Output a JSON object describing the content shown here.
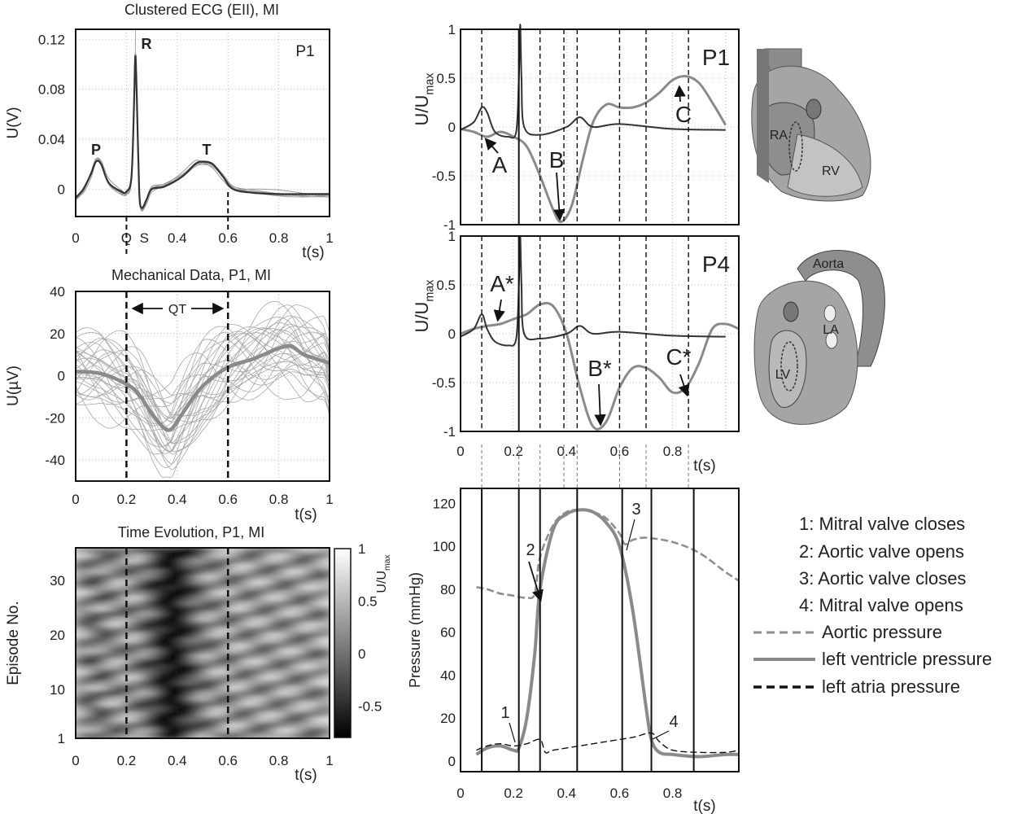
{
  "chart_data": [
    {
      "id": "ecg",
      "type": "line",
      "title": "Clustered ECG (EII), MI",
      "xlabel": "t(s)",
      "ylabel": "U(V)",
      "xlim": [
        0,
        1
      ],
      "ylim": [
        -0.022,
        0.128
      ],
      "xticks": [
        "0",
        "Q",
        "S",
        "0.4",
        "0.6",
        "0.8",
        "1"
      ],
      "yticks": [
        "0",
        "0.04",
        "0.08",
        "0.12"
      ],
      "panel_label": "P1",
      "annotations": [
        "P",
        "R",
        "T"
      ],
      "series": [
        {
          "name": "ECG",
          "x": [
            0,
            0.03,
            0.06,
            0.08,
            0.1,
            0.13,
            0.18,
            0.2,
            0.22,
            0.23,
            0.235,
            0.24,
            0.25,
            0.26,
            0.28,
            0.3,
            0.35,
            0.42,
            0.47,
            0.5,
            0.54,
            0.58,
            0.62,
            0.7,
            0.8,
            0.9,
            1.0
          ],
          "y": [
            -0.007,
            0.0,
            0.012,
            0.022,
            0.02,
            0.005,
            -0.002,
            -0.002,
            0.01,
            0.07,
            0.107,
            0.08,
            0.0,
            -0.015,
            -0.008,
            0.0,
            0.002,
            0.01,
            0.02,
            0.022,
            0.02,
            0.01,
            0.0,
            -0.003,
            -0.004,
            -0.004,
            -0.004
          ]
        }
      ]
    },
    {
      "id": "mech",
      "type": "line",
      "title": "Mechanical Data, P1, MI",
      "xlabel": "t(s)",
      "ylabel": "U(µV)",
      "xlim": [
        0,
        1
      ],
      "ylim": [
        -50,
        40
      ],
      "xticks": [
        "0",
        "0.2",
        "0.4",
        "0.6",
        "0.8",
        "1"
      ],
      "yticks": [
        "-40",
        "-20",
        "0",
        "20",
        "40"
      ],
      "annotation": "QT",
      "series": [
        {
          "name": "mean",
          "x": [
            0,
            0.1,
            0.2,
            0.25,
            0.3,
            0.35,
            0.38,
            0.42,
            0.5,
            0.6,
            0.7,
            0.8,
            0.85,
            0.9,
            1.0
          ],
          "y": [
            2,
            1,
            -4,
            -9,
            -18,
            -25,
            -25,
            -18,
            -5,
            4,
            8,
            13,
            14,
            10,
            6
          ]
        }
      ]
    },
    {
      "id": "heat",
      "type": "heatmap",
      "title": "Time Evolution, P1, MI",
      "xlabel": "t(s)",
      "ylabel": "Episode No.",
      "xlim": [
        0,
        1
      ],
      "ylim": [
        1,
        36
      ],
      "xticks": [
        "0",
        "0.2",
        "0.4",
        "0.6",
        "0.8",
        "1"
      ],
      "yticks": [
        "1",
        "10",
        "20",
        "30"
      ],
      "colorbar_label": "U/U",
      "colorbar_sub": "max",
      "colorbar_ticks": [
        "1",
        "0.5",
        "0",
        "-0.5"
      ]
    },
    {
      "id": "p1",
      "type": "line",
      "xlabel": "t(s)",
      "ylabel": "U/U",
      "ylabel_sub": "max",
      "xlim": [
        0,
        1.05
      ],
      "ylim": [
        -1,
        1
      ],
      "yticks": [
        "-1",
        "-0.5",
        "0",
        "0.5",
        "1"
      ],
      "panel_label": "P1",
      "annotations": [
        "A",
        "B",
        "C"
      ],
      "series": [
        {
          "name": "mechanical",
          "x": [
            0,
            0.05,
            0.1,
            0.15,
            0.2,
            0.25,
            0.3,
            0.35,
            0.38,
            0.42,
            0.46,
            0.5,
            0.55,
            0.6,
            0.65,
            0.7,
            0.75,
            0.8,
            0.85,
            0.9,
            0.95,
            1.0
          ],
          "y": [
            -0.02,
            -0.05,
            -0.1,
            -0.05,
            -0.1,
            -0.2,
            -0.5,
            -0.85,
            -0.97,
            -0.8,
            -0.35,
            0.05,
            0.23,
            0.2,
            0.2,
            0.25,
            0.35,
            0.48,
            0.52,
            0.45,
            0.25,
            0.02
          ]
        },
        {
          "name": "ecg",
          "x": [
            0,
            0.05,
            0.08,
            0.1,
            0.13,
            0.18,
            0.21,
            0.22,
            0.225,
            0.23,
            0.24,
            0.3,
            0.4,
            0.45,
            0.5,
            0.6,
            0.8,
            1.0
          ],
          "y": [
            -0.03,
            0.05,
            0.2,
            0.15,
            -0.05,
            -0.1,
            -0.05,
            0.5,
            1.05,
            0.5,
            0.0,
            -0.08,
            0.0,
            0.1,
            0.0,
            0.03,
            -0.02,
            -0.03
          ]
        }
      ]
    },
    {
      "id": "p4",
      "type": "line",
      "xlabel": "t(s)",
      "ylabel": "U/U",
      "ylabel_sub": "max",
      "xlim": [
        0,
        1.05
      ],
      "ylim": [
        -1,
        1
      ],
      "xticks": [
        "0",
        "0.2",
        "0.4",
        "0.6",
        "0.8"
      ],
      "yticks": [
        "-1",
        "-0.5",
        "0",
        "0.5",
        "1"
      ],
      "panel_label": "P4",
      "annotations": [
        "A*",
        "B*",
        "C*"
      ],
      "series": [
        {
          "name": "mechanical",
          "x": [
            0,
            0.05,
            0.1,
            0.15,
            0.2,
            0.25,
            0.3,
            0.35,
            0.4,
            0.45,
            0.5,
            0.55,
            0.6,
            0.65,
            0.7,
            0.75,
            0.8,
            0.85,
            0.9,
            0.95,
            1.0,
            1.05
          ],
          "y": [
            0.0,
            0.05,
            0.08,
            0.1,
            0.15,
            0.2,
            0.3,
            0.28,
            0.0,
            -0.55,
            -0.95,
            -0.9,
            -0.55,
            -0.35,
            -0.35,
            -0.45,
            -0.6,
            -0.55,
            -0.3,
            0.05,
            0.1,
            0.05
          ]
        },
        {
          "name": "ecg",
          "x": [
            0,
            0.05,
            0.08,
            0.1,
            0.13,
            0.18,
            0.21,
            0.22,
            0.225,
            0.23,
            0.24,
            0.3,
            0.4,
            0.45,
            0.5,
            0.6,
            0.8,
            1.0
          ],
          "y": [
            -0.03,
            0.05,
            0.2,
            0.05,
            -0.08,
            -0.12,
            -0.05,
            0.5,
            1.0,
            0.5,
            0.0,
            -0.05,
            0.0,
            0.08,
            0.0,
            0.02,
            -0.02,
            -0.03
          ]
        }
      ]
    },
    {
      "id": "pressure",
      "type": "line",
      "xlabel": "t(s)",
      "ylabel": "Pressure (mmHg)",
      "xlim": [
        0,
        1.05
      ],
      "ylim": [
        -5,
        127
      ],
      "xticks": [
        "0",
        "0.2",
        "0.4",
        "0.6",
        "0.8"
      ],
      "yticks": [
        "0",
        "20",
        "40",
        "60",
        "80",
        "100",
        "120"
      ],
      "annotations": [
        "1",
        "2",
        "3",
        "4"
      ],
      "legend": {
        "entries": [
          "1: Mitral valve closes",
          "2: Aortic valve opens",
          "3: Aortic valve closes",
          "4: Mitral valve opens",
          "Aortic pressure",
          "left ventricle pressure",
          "left atria pressure"
        ],
        "placement": "right"
      },
      "series": [
        {
          "name": "Aortic pressure",
          "x": [
            0.06,
            0.1,
            0.15,
            0.2,
            0.25,
            0.28,
            0.3,
            0.35,
            0.4,
            0.45,
            0.5,
            0.55,
            0.6,
            0.62,
            0.65,
            0.7,
            0.8,
            0.9,
            1.0,
            1.05
          ],
          "y": [
            81,
            80,
            78,
            77,
            76,
            78,
            95,
            110,
            116,
            117,
            116,
            113,
            106,
            101,
            103,
            104,
            102,
            97,
            88,
            84
          ]
        },
        {
          "name": "left ventricle pressure",
          "x": [
            0.06,
            0.1,
            0.15,
            0.2,
            0.22,
            0.25,
            0.28,
            0.3,
            0.35,
            0.4,
            0.45,
            0.5,
            0.55,
            0.6,
            0.65,
            0.7,
            0.72,
            0.75,
            0.8,
            0.9,
            1.0,
            1.05
          ],
          "y": [
            3,
            6,
            7,
            5,
            6,
            20,
            50,
            80,
            108,
            115,
            117,
            116,
            111,
            100,
            70,
            25,
            10,
            4,
            3,
            2,
            3,
            3
          ]
        },
        {
          "name": "left atria pressure",
          "x": [
            0.06,
            0.1,
            0.15,
            0.2,
            0.25,
            0.3,
            0.32,
            0.35,
            0.45,
            0.55,
            0.65,
            0.72,
            0.75,
            0.8,
            0.9,
            1.0,
            1.05
          ],
          "y": [
            5,
            7,
            8,
            7,
            8,
            10,
            4,
            5,
            7,
            9,
            11,
            13,
            9,
            5,
            4,
            4,
            5
          ]
        }
      ]
    }
  ],
  "heart": {
    "top_labels": [
      "RA",
      "RV"
    ],
    "bottom_labels": [
      "Aorta",
      "LA",
      "LV"
    ]
  },
  "colors": {
    "grey_line": "#8a8a8a",
    "dark_line": "#333333",
    "axis": "#111111",
    "grid": "#bbbbbb"
  }
}
